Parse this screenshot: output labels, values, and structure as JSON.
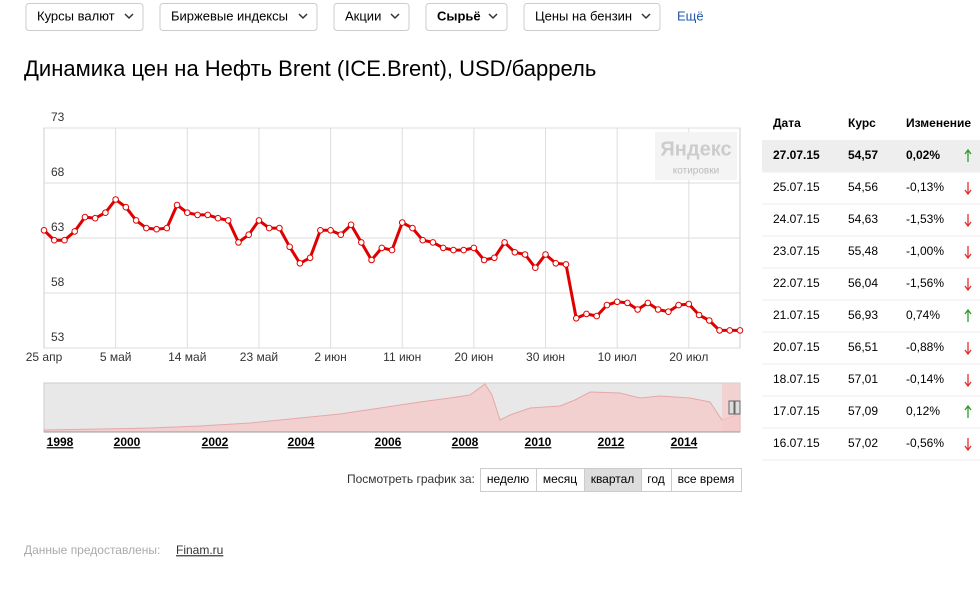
{
  "nav": {
    "tabs": [
      "Курсы валют",
      "Биржевые индексы",
      "Акции",
      "Сырьё",
      "Цены на бензин"
    ],
    "more": "Ещё"
  },
  "title": "Динамика цен на Нефть Brent (ICE.Brent), USD/баррель",
  "chart_data": {
    "type": "line",
    "watermark": {
      "brand": "Яндекс",
      "caption": "котировки"
    },
    "categories": [
      "25 апр",
      null,
      null,
      null,
      null,
      null,
      null,
      "5 май",
      null,
      null,
      null,
      null,
      null,
      null,
      "14 май",
      null,
      null,
      null,
      null,
      null,
      null,
      "23 май",
      null,
      null,
      null,
      null,
      null,
      null,
      "2 июн",
      null,
      null,
      null,
      null,
      null,
      null,
      "11 июн",
      null,
      null,
      null,
      null,
      null,
      null,
      "20 июн",
      null,
      null,
      null,
      null,
      null,
      null,
      "30 июн",
      null,
      null,
      null,
      null,
      null,
      null,
      "10 июл",
      null,
      null,
      null,
      null,
      null,
      null,
      "20 июл",
      null,
      null,
      null,
      null,
      null
    ],
    "series": [
      {
        "name": "ICE.Brent",
        "color": "#e00000",
        "values": [
          63.7,
          62.8,
          62.8,
          63.6,
          64.9,
          64.8,
          65.3,
          66.5,
          65.8,
          64.6,
          63.9,
          63.8,
          63.9,
          66.0,
          65.3,
          65.1,
          65.1,
          64.8,
          64.6,
          62.6,
          63.3,
          64.6,
          63.9,
          63.9,
          62.2,
          60.7,
          61.2,
          63.7,
          63.7,
          63.3,
          64.2,
          62.6,
          61.0,
          62.1,
          61.9,
          64.4,
          63.9,
          62.8,
          62.6,
          62.1,
          61.9,
          61.9,
          62.1,
          61.0,
          61.2,
          62.6,
          61.7,
          61.5,
          60.3,
          61.5,
          60.7,
          60.6,
          55.7,
          56.1,
          55.9,
          56.9,
          57.2,
          57.1,
          56.5,
          57.1,
          56.5,
          56.3,
          56.9,
          57.0,
          56.0,
          55.5,
          54.6,
          54.6,
          54.6
        ]
      }
    ],
    "ylim": [
      53,
      73
    ],
    "yticks": [
      53,
      58,
      63,
      68,
      73
    ],
    "grid": true
  },
  "navigator": {
    "years": [
      "1998",
      "2000",
      "2002",
      "2004",
      "2006",
      "2008",
      "2010",
      "2012",
      "2014"
    ]
  },
  "period": {
    "label": "Посмотреть график за:",
    "options": [
      "неделю",
      "месяц",
      "квартал",
      "год",
      "все время"
    ],
    "selected": 2
  },
  "table": {
    "header": [
      "Дата",
      "Курс",
      "Изменение"
    ],
    "rows": [
      {
        "date": "27.07.15",
        "price": "54,57",
        "change": "0,02%",
        "direction": "up"
      },
      {
        "date": "25.07.15",
        "price": "54,56",
        "change": "-0,13%",
        "direction": "down"
      },
      {
        "date": "24.07.15",
        "price": "54,63",
        "change": "-1,53%",
        "direction": "down"
      },
      {
        "date": "23.07.15",
        "price": "55,48",
        "change": "-1,00%",
        "direction": "down"
      },
      {
        "date": "22.07.15",
        "price": "56,04",
        "change": "-1,56%",
        "direction": "down"
      },
      {
        "date": "21.07.15",
        "price": "56,93",
        "change": "0,74%",
        "direction": "up"
      },
      {
        "date": "20.07.15",
        "price": "56,51",
        "change": "-0,88%",
        "direction": "down"
      },
      {
        "date": "18.07.15",
        "price": "57,01",
        "change": "-0,14%",
        "direction": "down"
      },
      {
        "date": "17.07.15",
        "price": "57,09",
        "change": "0,12%",
        "direction": "up"
      },
      {
        "date": "16.07.15",
        "price": "57,02",
        "change": "-0,56%",
        "direction": "down"
      }
    ]
  },
  "footer": {
    "label": "Данные предоставлены:",
    "link": "Finam.ru"
  }
}
